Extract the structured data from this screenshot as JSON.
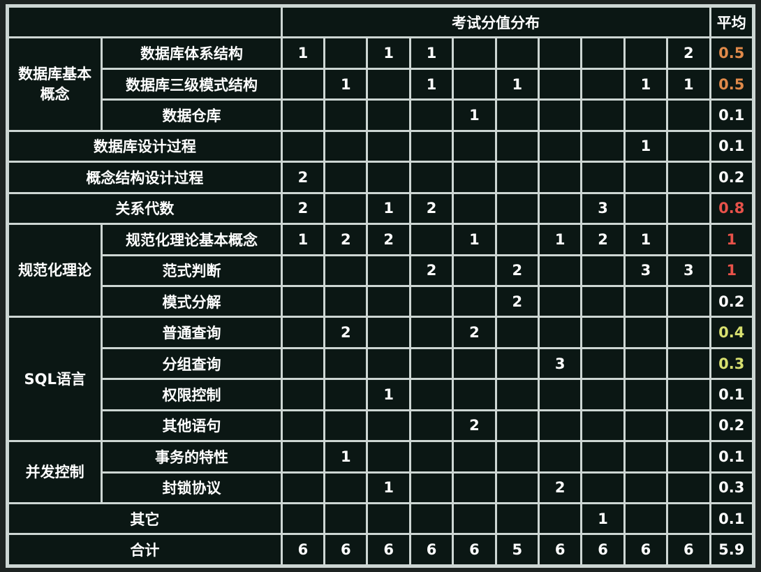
{
  "header": {
    "corner": "",
    "distribution_title": "考试分值分布",
    "average_title": "平均"
  },
  "colors": {
    "background": "#1d2321",
    "grid_line": "#cdd6d3",
    "cell": "#0b1714",
    "text": "#ffffff",
    "avg_high": "#e8524a",
    "avg_mid": "#e08a4a",
    "avg_low": "#d8e070",
    "avg_normal": "#ffffff"
  },
  "chart_data": {
    "type": "table",
    "title": "考试分值分布",
    "columns_count": 10,
    "groups": [
      {
        "category": "数据库基本概念",
        "rows": [
          {
            "label": "数据库体系结构",
            "values": [
              1,
              null,
              1,
              1,
              null,
              null,
              null,
              null,
              null,
              2
            ],
            "avg": "0.5",
            "avg_color": "avg_mid"
          },
          {
            "label": "数据库三级模式结构",
            "values": [
              null,
              1,
              null,
              1,
              null,
              1,
              null,
              null,
              1,
              1
            ],
            "avg": "0.5",
            "avg_color": "avg_mid"
          },
          {
            "label": "数据仓库",
            "values": [
              null,
              null,
              null,
              null,
              1,
              null,
              null,
              null,
              null,
              null
            ],
            "avg": "0.1",
            "avg_color": "avg_normal"
          }
        ]
      },
      {
        "category": "",
        "rows": [
          {
            "label": "数据库设计过程",
            "values": [
              null,
              null,
              null,
              null,
              null,
              null,
              null,
              null,
              1,
              null
            ],
            "avg": "0.1",
            "avg_color": "avg_normal"
          }
        ]
      },
      {
        "category": "",
        "rows": [
          {
            "label": "概念结构设计过程",
            "values": [
              2,
              null,
              null,
              null,
              null,
              null,
              null,
              null,
              null,
              null
            ],
            "avg": "0.2",
            "avg_color": "avg_normal"
          }
        ]
      },
      {
        "category": "",
        "rows": [
          {
            "label": "关系代数",
            "values": [
              2,
              null,
              1,
              2,
              null,
              null,
              null,
              3,
              null,
              null
            ],
            "avg": "0.8",
            "avg_color": "avg_high"
          }
        ]
      },
      {
        "category": "规范化理论",
        "rows": [
          {
            "label": "规范化理论基本概念",
            "values": [
              1,
              2,
              2,
              null,
              1,
              null,
              1,
              2,
              1,
              null
            ],
            "avg": "1",
            "avg_color": "avg_high"
          },
          {
            "label": "范式判断",
            "values": [
              null,
              null,
              null,
              2,
              null,
              2,
              null,
              null,
              3,
              3
            ],
            "avg": "1",
            "avg_color": "avg_high"
          },
          {
            "label": "模式分解",
            "values": [
              null,
              null,
              null,
              null,
              null,
              2,
              null,
              null,
              null,
              null
            ],
            "avg": "0.2",
            "avg_color": "avg_normal"
          }
        ]
      },
      {
        "category": "SQL语言",
        "rows": [
          {
            "label": "普通查询",
            "values": [
              null,
              2,
              null,
              null,
              2,
              null,
              null,
              null,
              null,
              null
            ],
            "avg": "0.4",
            "avg_color": "avg_low"
          },
          {
            "label": "分组查询",
            "values": [
              null,
              null,
              null,
              null,
              null,
              null,
              3,
              null,
              null,
              null
            ],
            "avg": "0.3",
            "avg_color": "avg_low"
          },
          {
            "label": "权限控制",
            "values": [
              null,
              null,
              1,
              null,
              null,
              null,
              null,
              null,
              null,
              null
            ],
            "avg": "0.1",
            "avg_color": "avg_normal"
          },
          {
            "label": "其他语句",
            "values": [
              null,
              null,
              null,
              null,
              2,
              null,
              null,
              null,
              null,
              null
            ],
            "avg": "0.2",
            "avg_color": "avg_normal"
          }
        ]
      },
      {
        "category": "并发控制",
        "rows": [
          {
            "label": "事务的特性",
            "values": [
              null,
              1,
              null,
              null,
              null,
              null,
              null,
              null,
              null,
              null
            ],
            "avg": "0.1",
            "avg_color": "avg_normal"
          },
          {
            "label": "封锁协议",
            "values": [
              null,
              null,
              1,
              null,
              null,
              null,
              2,
              null,
              null,
              null
            ],
            "avg": "0.3",
            "avg_color": "avg_normal"
          }
        ]
      },
      {
        "category": "",
        "rows": [
          {
            "label": "其它",
            "values": [
              null,
              null,
              null,
              null,
              null,
              null,
              null,
              1,
              null,
              null
            ],
            "avg": "0.1",
            "avg_color": "avg_normal"
          }
        ]
      }
    ],
    "total": {
      "label": "合计",
      "values": [
        6,
        6,
        6,
        6,
        6,
        5,
        6,
        6,
        6,
        6
      ],
      "avg": "5.9",
      "avg_color": "avg_normal"
    }
  }
}
